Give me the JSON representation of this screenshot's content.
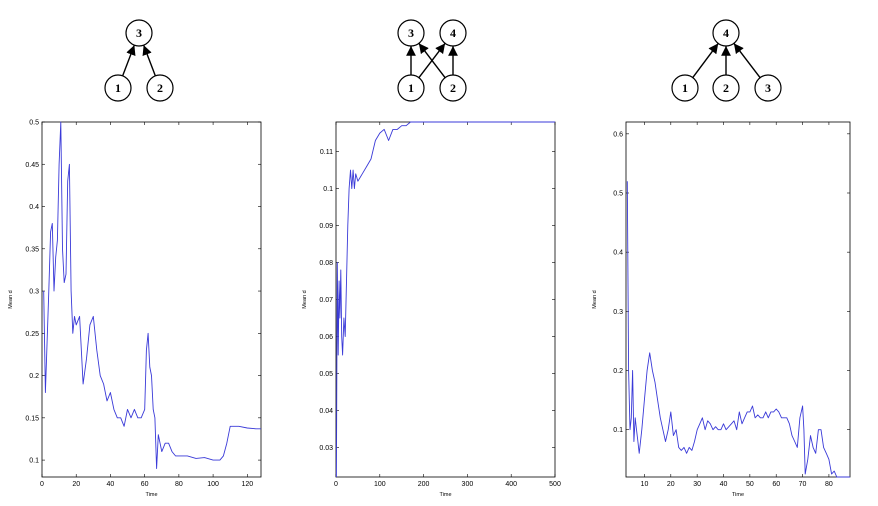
{
  "colors": {
    "line": "#3a3ad8",
    "axis": "#000000",
    "background": "#ffffff"
  },
  "chart_data": [
    {
      "type": "line",
      "title": "",
      "xlabel": "Time",
      "ylabel": "Mean d",
      "xlim": [
        0,
        128
      ],
      "ylim": [
        0.08,
        0.5
      ],
      "xticks": [
        0,
        20,
        40,
        60,
        80,
        100,
        120
      ],
      "yticks": [
        0.1,
        0.15,
        0.2,
        0.25,
        0.3,
        0.35,
        0.4,
        0.45,
        0.5
      ],
      "xtick_labels": [
        "0",
        "20",
        "40",
        "60",
        "80",
        "100",
        "120"
      ],
      "ytick_labels": [
        "0.1",
        "0.15",
        "0.2",
        "0.25",
        "0.3",
        "0.35",
        "0.4",
        "0.45",
        "0.5"
      ],
      "grid": false,
      "series": [
        {
          "x": [
            1,
            2,
            3,
            4,
            5,
            6,
            7,
            8,
            9,
            10,
            11,
            12,
            13,
            14,
            15,
            16,
            17,
            18,
            19,
            20,
            22,
            24,
            26,
            28,
            30,
            32,
            34,
            36,
            38,
            40,
            42,
            44,
            46,
            48,
            50,
            52,
            54,
            56,
            58,
            60,
            61,
            62,
            63,
            64,
            65,
            66,
            67,
            68,
            70,
            72,
            74,
            76,
            78,
            80,
            85,
            90,
            95,
            100,
            104,
            106,
            108,
            110,
            115,
            120,
            125,
            128
          ],
          "y": [
            0.3,
            0.18,
            0.24,
            0.3,
            0.37,
            0.38,
            0.3,
            0.34,
            0.36,
            0.45,
            0.5,
            0.35,
            0.31,
            0.32,
            0.43,
            0.45,
            0.3,
            0.25,
            0.27,
            0.26,
            0.27,
            0.19,
            0.22,
            0.26,
            0.27,
            0.23,
            0.2,
            0.19,
            0.17,
            0.18,
            0.16,
            0.15,
            0.15,
            0.14,
            0.16,
            0.15,
            0.16,
            0.15,
            0.15,
            0.16,
            0.23,
            0.25,
            0.21,
            0.2,
            0.16,
            0.15,
            0.09,
            0.13,
            0.11,
            0.12,
            0.12,
            0.11,
            0.105,
            0.105,
            0.105,
            0.102,
            0.103,
            0.1,
            0.1,
            0.105,
            0.12,
            0.14,
            0.14,
            0.138,
            0.137,
            0.137
          ]
        }
      ]
    },
    {
      "type": "line",
      "title": "",
      "xlabel": "Time",
      "ylabel": "Mean d",
      "xlim": [
        0,
        500
      ],
      "ylim": [
        0.022,
        0.118
      ],
      "xticks": [
        0,
        100,
        200,
        300,
        400,
        500
      ],
      "yticks": [
        0.03,
        0.04,
        0.05,
        0.06,
        0.07,
        0.08,
        0.09,
        0.1,
        0.11
      ],
      "xtick_labels": [
        "0",
        "100",
        "200",
        "300",
        "400",
        "500"
      ],
      "ytick_labels": [
        "0.03",
        "0.04",
        "0.05",
        "0.06",
        "0.07",
        "0.08",
        "0.09",
        "0.1",
        "0.11"
      ],
      "grid": false,
      "series": [
        {
          "x": [
            1,
            3,
            5,
            7,
            9,
            11,
            13,
            15,
            18,
            21,
            24,
            27,
            30,
            33,
            36,
            39,
            42,
            45,
            50,
            55,
            60,
            70,
            80,
            90,
            100,
            110,
            120,
            130,
            140,
            150,
            160,
            170,
            200,
            300,
            400,
            500
          ],
          "y": [
            0.022,
            0.08,
            0.055,
            0.075,
            0.065,
            0.078,
            0.06,
            0.055,
            0.065,
            0.06,
            0.075,
            0.09,
            0.1,
            0.105,
            0.1,
            0.105,
            0.1,
            0.104,
            0.102,
            0.103,
            0.104,
            0.106,
            0.108,
            0.113,
            0.115,
            0.116,
            0.113,
            0.116,
            0.116,
            0.117,
            0.117,
            0.118,
            0.118,
            0.118,
            0.118,
            0.118
          ]
        }
      ]
    },
    {
      "type": "line",
      "title": "",
      "xlabel": "Time",
      "ylabel": "Mean d",
      "xlim": [
        3,
        88
      ],
      "ylim": [
        0.02,
        0.62
      ],
      "xticks": [
        10,
        20,
        30,
        40,
        50,
        60,
        70,
        80
      ],
      "yticks": [
        0.1,
        0.2,
        0.3,
        0.4,
        0.5,
        0.6
      ],
      "xtick_labels": [
        "10",
        "20",
        "30",
        "40",
        "50",
        "60",
        "70",
        "80"
      ],
      "ytick_labels": [
        "0.1",
        "0.2",
        "0.3",
        "0.4",
        "0.5",
        "0.6"
      ],
      "grid": false,
      "series": [
        {
          "x": [
            3.5,
            4,
            4.5,
            5,
            5.5,
            6,
            6.5,
            7,
            7.5,
            8,
            9,
            10,
            11,
            12,
            13,
            14,
            15,
            16,
            17,
            18,
            19,
            20,
            21,
            22,
            23,
            24,
            25,
            26,
            27,
            28,
            29,
            30,
            31,
            32,
            33,
            34,
            35,
            36,
            37,
            38,
            39,
            40,
            41,
            42,
            43,
            44,
            45,
            46,
            47,
            48,
            49,
            50,
            51,
            52,
            53,
            54,
            55,
            56,
            57,
            58,
            59,
            60,
            61,
            62,
            63,
            64,
            65,
            66,
            67,
            68,
            69,
            70,
            70.5,
            71,
            72,
            73,
            74,
            75,
            76,
            77,
            78,
            79,
            80,
            81,
            82,
            83,
            85,
            88
          ],
          "y": [
            0.52,
            0.2,
            0.1,
            0.12,
            0.2,
            0.08,
            0.12,
            0.1,
            0.08,
            0.06,
            0.1,
            0.15,
            0.2,
            0.23,
            0.2,
            0.18,
            0.15,
            0.12,
            0.1,
            0.08,
            0.1,
            0.13,
            0.09,
            0.1,
            0.07,
            0.065,
            0.07,
            0.06,
            0.07,
            0.065,
            0.08,
            0.1,
            0.11,
            0.12,
            0.1,
            0.115,
            0.11,
            0.1,
            0.105,
            0.1,
            0.1,
            0.11,
            0.1,
            0.105,
            0.11,
            0.115,
            0.1,
            0.13,
            0.11,
            0.12,
            0.13,
            0.13,
            0.14,
            0.12,
            0.125,
            0.12,
            0.12,
            0.13,
            0.12,
            0.13,
            0.13,
            0.135,
            0.13,
            0.12,
            0.12,
            0.12,
            0.11,
            0.09,
            0.08,
            0.07,
            0.12,
            0.14,
            0.1,
            0.025,
            0.05,
            0.09,
            0.07,
            0.06,
            0.1,
            0.1,
            0.07,
            0.06,
            0.05,
            0.025,
            0.03,
            0.02,
            0.02,
            0.02
          ]
        }
      ]
    }
  ],
  "graphs": [
    {
      "nodes": [
        {
          "id": "3",
          "label": "3"
        },
        {
          "id": "1",
          "label": "1"
        },
        {
          "id": "2",
          "label": "2"
        }
      ],
      "edges": [
        {
          "from": "1",
          "to": "3"
        },
        {
          "from": "2",
          "to": "3"
        }
      ]
    },
    {
      "nodes": [
        {
          "id": "3",
          "label": "3"
        },
        {
          "id": "4",
          "label": "4"
        },
        {
          "id": "1",
          "label": "1"
        },
        {
          "id": "2",
          "label": "2"
        }
      ],
      "edges": [
        {
          "from": "1",
          "to": "3"
        },
        {
          "from": "1",
          "to": "4"
        },
        {
          "from": "2",
          "to": "3"
        },
        {
          "from": "2",
          "to": "4"
        }
      ]
    },
    {
      "nodes": [
        {
          "id": "4",
          "label": "4"
        },
        {
          "id": "1",
          "label": "1"
        },
        {
          "id": "2",
          "label": "2"
        },
        {
          "id": "3",
          "label": "3"
        }
      ],
      "edges": [
        {
          "from": "1",
          "to": "4"
        },
        {
          "from": "2",
          "to": "4"
        },
        {
          "from": "3",
          "to": "4"
        }
      ]
    }
  ]
}
